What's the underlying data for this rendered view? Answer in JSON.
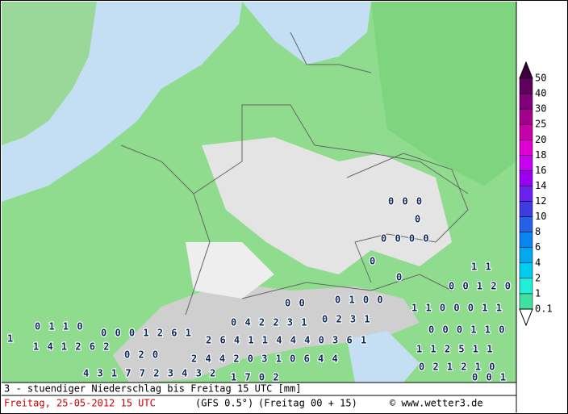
{
  "map": {
    "labels": [
      "0 0 0",
      "0",
      "0 0 0 0",
      "0",
      "0",
      "1 1",
      "0 0 1 2 0",
      "0 0",
      "0 1 0 0",
      "1 1 0 0 0 1 1",
      "0 1 1 0",
      "0 0 0 1 2 6 1",
      "0 4 2 2 3 1",
      "0 2 3 1",
      "0 0 0 1 1 0",
      "1",
      "2 6 4 1 1 4 4 4 0 3 6 1",
      "1 4 1 2 6 2",
      "1 1 2 5 1 1",
      "0 2 0",
      "2 4 4 2 0 3 1 0 6 4 4",
      "0 2 1 2 1 0",
      "4 3 1 7 7 2 3 4 3 2",
      "1 7 0 2",
      "0 0 1"
    ]
  },
  "legend": {
    "levels": [
      50,
      40,
      30,
      25,
      20,
      18,
      16,
      14,
      12,
      10,
      8,
      6,
      4,
      2,
      1,
      0.1
    ],
    "colors": [
      "#3a003a",
      "#5e005e",
      "#800078",
      "#a4008e",
      "#c800aa",
      "#e000d0",
      "#c800f0",
      "#9a00f0",
      "#6a20f0",
      "#3c3ce0",
      "#2460e8",
      "#0a84f0",
      "#00a8f0",
      "#00ccf0",
      "#20f0d8",
      "#40e0a0"
    ]
  },
  "footer": {
    "title": "3 - stuendiger Niederschlag bis Freitag 15 UTC [mm]",
    "date": "Freitag, 25-05-2012  15 UTC",
    "model": "(GFS 0.5°)",
    "run": "(Freitag 00 + 15)",
    "credit": "© www.wetter3.de"
  }
}
